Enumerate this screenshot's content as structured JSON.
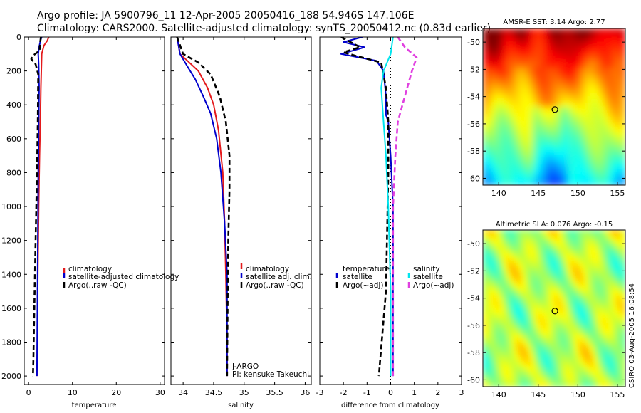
{
  "title": {
    "line1": "Argo profile: JA 5900796_11 12-Apr-2005 20050416_188 54.946S 147.106E",
    "line2": "Climatology: CARS2000. Satellite-adjusted climatology: synTS_20050412.nc (0.83d earlier)"
  },
  "footer": "CSIRO 03-Aug-2005 16:08:54",
  "colors": {
    "red": "#e41a1c",
    "blue": "#0000cc",
    "black": "#000000",
    "cyan": "#00e5ee",
    "magenta": "#e040e0"
  },
  "chart_data": [
    {
      "type": "line",
      "name": "temperature-profile",
      "xlabel": "temperature",
      "ylabel": "",
      "xlim": [
        -1,
        31
      ],
      "ylim": [
        2050,
        0
      ],
      "ydir": "reversed",
      "xticks": [
        0,
        10,
        20,
        30
      ],
      "yticks": [
        0,
        200,
        400,
        600,
        800,
        1000,
        1200,
        1400,
        1600,
        1800,
        2000
      ],
      "legend": {
        "position": "right-middle",
        "entries": [
          "climatology",
          "satellite-adjusted climatology",
          "Argo(..raw -QC)"
        ]
      },
      "series": [
        {
          "name": "climatology",
          "color": "red",
          "dash": "solid",
          "x": [
            4.6,
            4.3,
            3.5,
            3.0,
            2.9,
            2.8,
            2.7,
            2.5,
            2.3,
            2.1,
            2.0,
            1.9
          ],
          "y": [
            0,
            20,
            50,
            100,
            200,
            300,
            460,
            700,
            1000,
            1400,
            1800,
            2000
          ]
        },
        {
          "name": "satellite-adjusted climatology",
          "color": "blue",
          "dash": "solid",
          "x": [
            3.0,
            2.7,
            2.4,
            2.2,
            2.3,
            2.4,
            2.3,
            2.2,
            2.1,
            2.0,
            1.9
          ],
          "y": [
            0,
            20,
            60,
            100,
            160,
            300,
            500,
            800,
            1200,
            1600,
            2000
          ]
        },
        {
          "name": "Argo(..raw -QC)",
          "color": "black",
          "dash": "dashed",
          "x": [
            2.8,
            2.6,
            2.5,
            1.0,
            0.6,
            1.6,
            2.2,
            2.1,
            1.9,
            1.6,
            1.3,
            1.1,
            1.0
          ],
          "y": [
            0,
            40,
            80,
            110,
            130,
            160,
            220,
            500,
            800,
            1200,
            1600,
            1900,
            2000
          ]
        }
      ]
    },
    {
      "type": "line",
      "name": "salinity-profile",
      "xlabel": "salinity",
      "ylabel": "",
      "xlim": [
        33.8,
        36.1
      ],
      "ylim": [
        2050,
        0
      ],
      "ydir": "reversed",
      "xticks": [
        34,
        34.5,
        35,
        35.5,
        36
      ],
      "annotations": [
        "J-ARGO",
        "PI: kensuke Takeuchi"
      ],
      "legend": {
        "position": "right-middle",
        "entries": [
          "climatology",
          "satellite adj. clim.",
          "Argo(..raw -QC)"
        ]
      },
      "series": [
        {
          "name": "climatology",
          "color": "red",
          "dash": "solid",
          "x": [
            33.9,
            33.95,
            34.1,
            34.25,
            34.4,
            34.5,
            34.58,
            34.65,
            34.68,
            34.7,
            34.72,
            34.72
          ],
          "y": [
            0,
            100,
            150,
            200,
            300,
            400,
            550,
            800,
            1100,
            1400,
            1800,
            2000
          ]
        },
        {
          "name": "satellite adj. clim.",
          "color": "blue",
          "dash": "solid",
          "x": [
            33.9,
            33.95,
            34.08,
            34.2,
            34.33,
            34.45,
            34.55,
            34.62,
            34.68,
            34.72,
            34.72
          ],
          "y": [
            0,
            100,
            180,
            250,
            350,
            450,
            600,
            800,
            1100,
            1400,
            2000
          ]
        },
        {
          "name": "Argo(..raw -QC)",
          "color": "black",
          "dash": "dashed",
          "x": [
            33.9,
            34.0,
            34.25,
            34.45,
            34.6,
            34.7,
            34.76,
            34.76,
            34.74,
            34.73,
            34.72
          ],
          "y": [
            0,
            100,
            150,
            220,
            350,
            500,
            700,
            900,
            1200,
            1500,
            2000
          ]
        }
      ]
    },
    {
      "type": "line",
      "name": "difference-profile",
      "xlabel": "difference from climatology",
      "ylabel": "",
      "xlim": [
        -3,
        3
      ],
      "ylim": [
        2050,
        0
      ],
      "ydir": "reversed",
      "xticks": [
        -3,
        -2,
        -1,
        0,
        1,
        2,
        3
      ],
      "legend": {
        "position": "middle",
        "groups": [
          {
            "title": "temperature",
            "entries": [
              "satellite",
              "Argo(~adj)"
            ]
          },
          {
            "title": "salinity",
            "entries": [
              "satellite",
              "Argo(~adj)"
            ]
          }
        ]
      },
      "series": [
        {
          "name": "temperature satellite",
          "color": "blue",
          "dash": "solid",
          "x": [
            -1.2,
            -2.0,
            -1.1,
            -2.1,
            -0.6,
            -0.3,
            -0.2,
            -0.2,
            -0.1,
            0.0,
            0.1,
            0.1,
            0.1
          ],
          "y": [
            0,
            30,
            60,
            100,
            140,
            200,
            350,
            460,
            500,
            700,
            1000,
            1500,
            2000
          ]
        },
        {
          "name": "temperature Argo(~adj)",
          "color": "black",
          "dash": "dashed",
          "x": [
            -2.1,
            -1.3,
            -2.0,
            -1.5,
            -0.4,
            -0.2,
            -0.1,
            -0.1,
            -0.2,
            -0.5
          ],
          "y": [
            0,
            60,
            90,
            110,
            150,
            300,
            500,
            800,
            1500,
            2000
          ]
        },
        {
          "name": "salinity satellite",
          "color": "cyan",
          "dash": "solid",
          "x": [
            0.1,
            0.0,
            -0.3,
            -0.4,
            -0.3,
            -0.2,
            -0.1,
            0.0,
            0.0
          ],
          "y": [
            0,
            100,
            200,
            300,
            500,
            700,
            1000,
            1500,
            2000
          ]
        },
        {
          "name": "salinity Argo(~adj)",
          "color": "magenta",
          "dash": "dashed",
          "x": [
            0.3,
            0.6,
            1.1,
            0.9,
            0.6,
            0.3,
            0.2,
            0.1,
            0.1
          ],
          "y": [
            0,
            60,
            120,
            200,
            350,
            500,
            700,
            1000,
            2000
          ]
        }
      ]
    },
    {
      "type": "heatmap",
      "name": "sst-map",
      "title": "AMSR-E SST: 3.14 Argo: 2.77",
      "xlim": [
        138,
        156
      ],
      "ylim": [
        -60.5,
        -49
      ],
      "xticks": [
        140,
        145,
        150,
        155
      ],
      "yticks": [
        -50,
        -52,
        -54,
        -56,
        -58,
        -60
      ],
      "marker": {
        "lon": 147.1,
        "lat": -54.95
      }
    },
    {
      "type": "heatmap",
      "name": "sla-map",
      "title": "Altimetric SLA: 0.076 Argo: -0.15",
      "xlim": [
        138,
        156
      ],
      "ylim": [
        -60.5,
        -49
      ],
      "xticks": [
        140,
        145,
        150,
        155
      ],
      "yticks": [
        -50,
        -52,
        -54,
        -56,
        -58,
        -60
      ],
      "marker": {
        "lon": 147.1,
        "lat": -54.95
      }
    }
  ]
}
